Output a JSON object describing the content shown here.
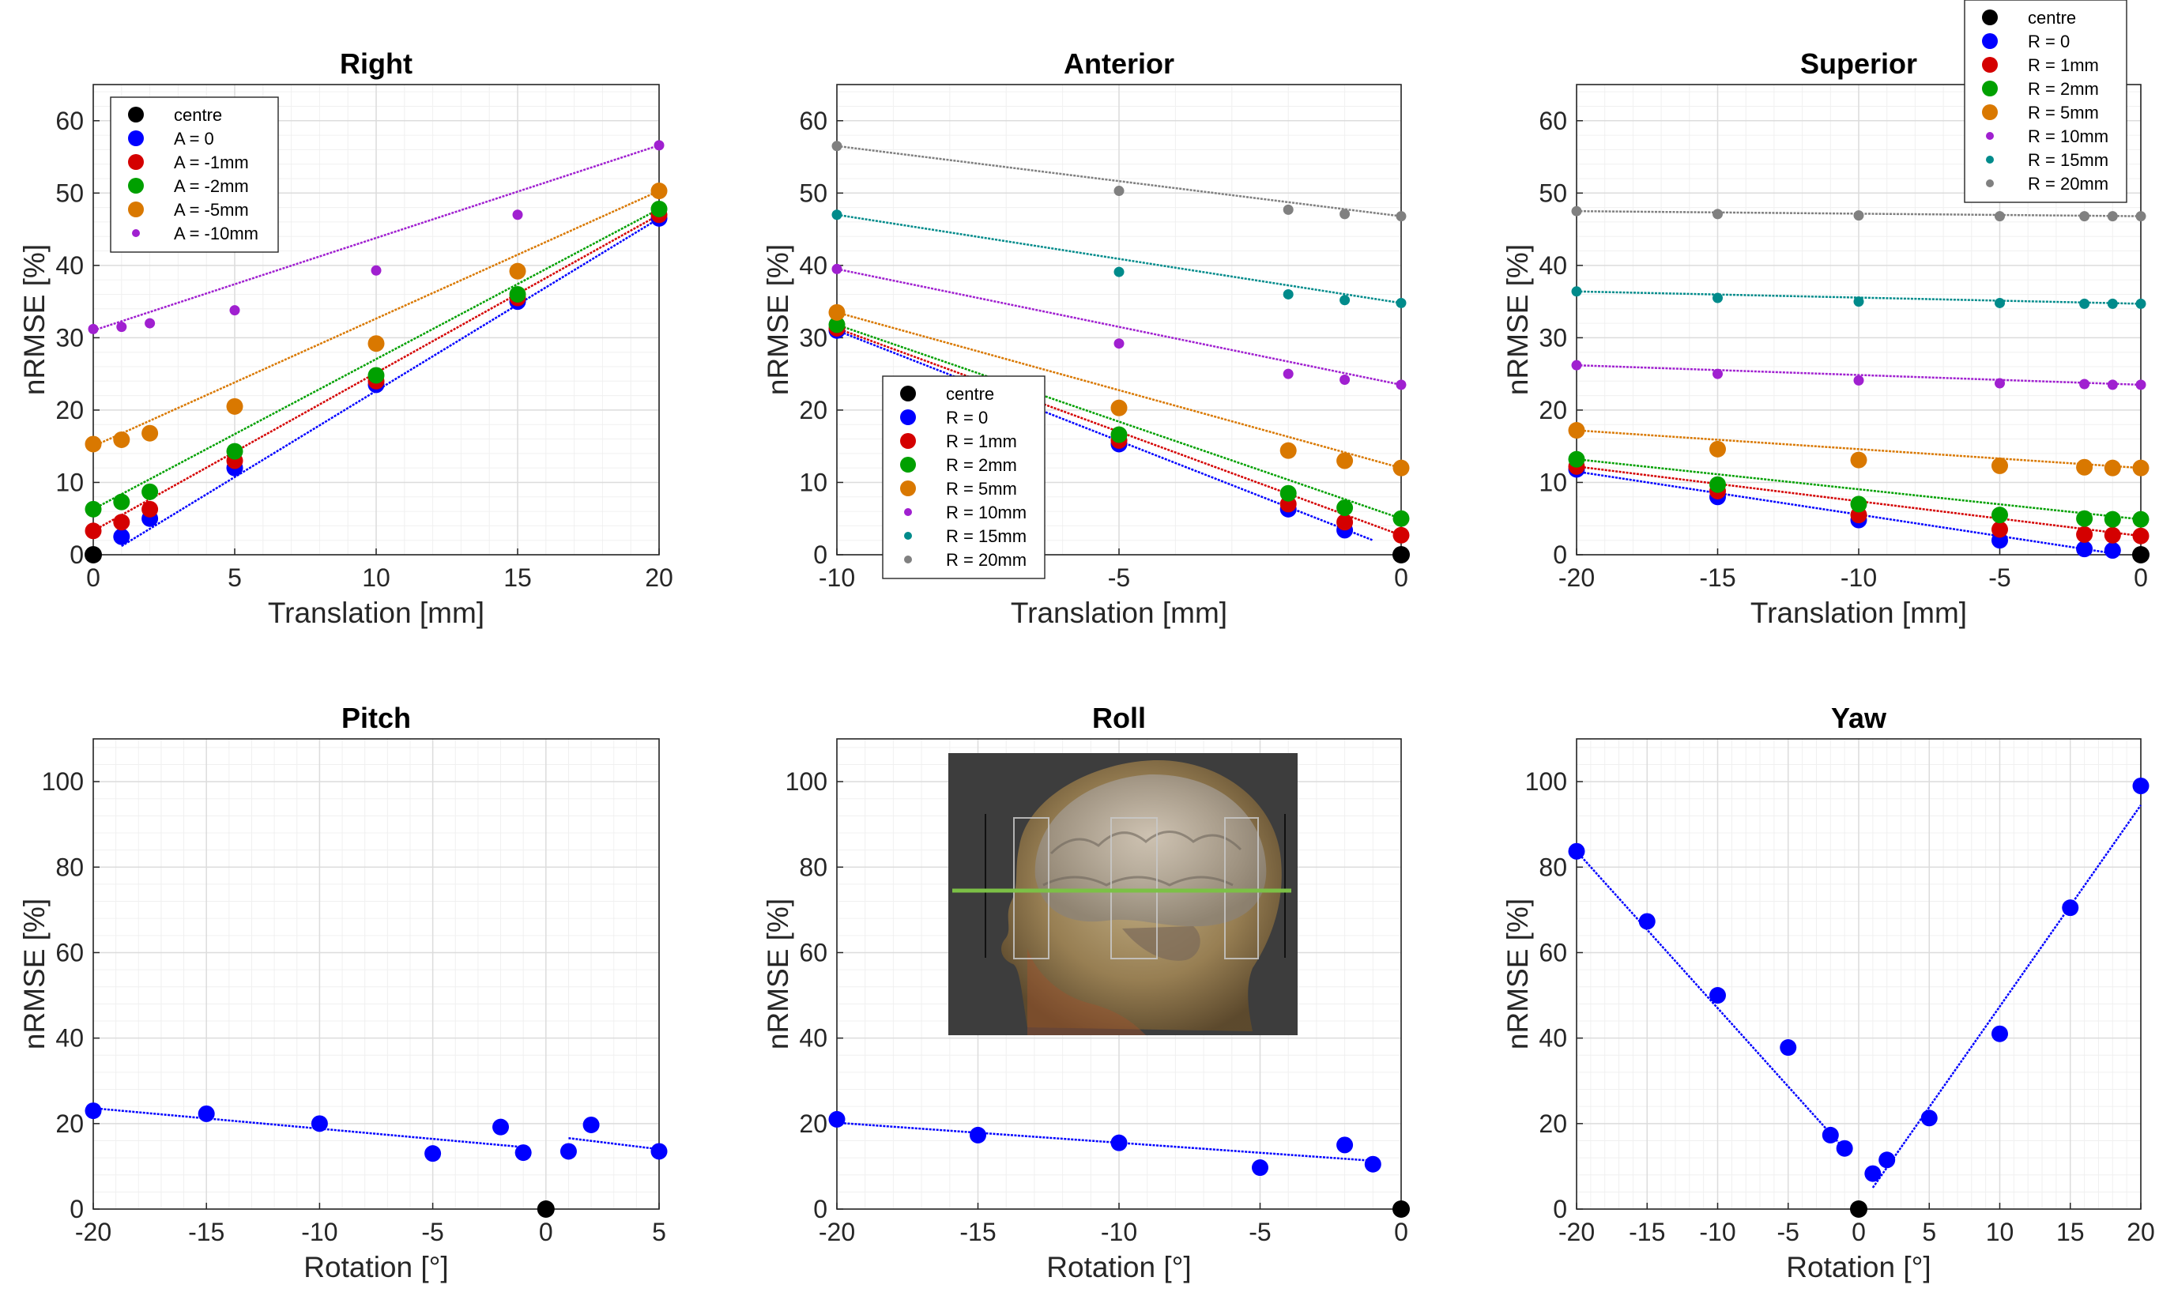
{
  "colors": {
    "centre": "#000000",
    "s0": "#0000ff",
    "s1": "#d40000",
    "s2": "#00a000",
    "s5": "#d97800",
    "s10": "#a020d0",
    "s15": "#008b8b",
    "s20": "#808080"
  },
  "chart_data": [
    {
      "type": "scatter",
      "title": "Right",
      "xlabel": "Translation [mm]",
      "ylabel": "nRMSE [%]",
      "xlim": [
        0,
        20
      ],
      "ylim": [
        0,
        65
      ],
      "xticks": [
        0,
        5,
        10,
        15,
        20
      ],
      "yticks": [
        0,
        10,
        20,
        30,
        40,
        50,
        60
      ],
      "grid": true,
      "legend": "top-left",
      "centre": {
        "name": "centre",
        "x": 0,
        "y": 0
      },
      "series": [
        {
          "name": "A = 0",
          "color_key": "s0",
          "marker": "large",
          "x": [
            1,
            2,
            5,
            10,
            15,
            20
          ],
          "y": [
            2.5,
            5,
            12,
            23.5,
            35,
            46.5
          ],
          "fit": [
            [
              1,
              1.2
            ],
            [
              20,
              46.5
            ]
          ]
        },
        {
          "name": "A = -1mm",
          "color_key": "s1",
          "marker": "large",
          "x": [
            0,
            1,
            2,
            5,
            10,
            15,
            20
          ],
          "y": [
            3.3,
            4.5,
            6.3,
            13,
            24,
            35.5,
            47
          ],
          "fit": [
            [
              0,
              3.3
            ],
            [
              20,
              47
            ]
          ]
        },
        {
          "name": "A = -2mm",
          "color_key": "s2",
          "marker": "large",
          "x": [
            0,
            1,
            2,
            5,
            10,
            15,
            20
          ],
          "y": [
            6.3,
            7.3,
            8.7,
            14.3,
            24.8,
            36,
            47.8
          ],
          "fit": [
            [
              0,
              6.3
            ],
            [
              20,
              47.8
            ]
          ]
        },
        {
          "name": "A = -5mm",
          "color_key": "s5",
          "marker": "large",
          "x": [
            0,
            1,
            2,
            5,
            10,
            15,
            20
          ],
          "y": [
            15.3,
            15.9,
            16.8,
            20.5,
            29.2,
            39.2,
            50.3
          ],
          "fit": [
            [
              0,
              15
            ],
            [
              20,
              50.3
            ]
          ]
        },
        {
          "name": "A = -10mm",
          "color_key": "s10",
          "marker": "small",
          "x": [
            0,
            1,
            2,
            5,
            10,
            15,
            20
          ],
          "y": [
            31.2,
            31.5,
            32,
            33.8,
            39.3,
            47,
            56.6
          ],
          "fit": [
            [
              0,
              31
            ],
            [
              20,
              56.6
            ]
          ]
        }
      ]
    },
    {
      "type": "scatter",
      "title": "Anterior",
      "xlabel": "Translation [mm]",
      "ylabel": "nRMSE [%]",
      "xlim": [
        -10,
        0
      ],
      "ylim": [
        0,
        65
      ],
      "xticks": [
        -10,
        -5,
        0
      ],
      "yticks": [
        0,
        10,
        20,
        30,
        40,
        50,
        60
      ],
      "grid": true,
      "legend": "bottom-center",
      "centre": {
        "name": "centre",
        "x": 0,
        "y": 0
      },
      "series": [
        {
          "name": "R = 0",
          "color_key": "s0",
          "marker": "large",
          "x": [
            -10,
            -5,
            -2,
            -1
          ],
          "y": [
            31,
            15.3,
            6.3,
            3.4
          ],
          "fit": [
            [
              -10,
              31
            ],
            [
              -0.5,
              2
            ]
          ]
        },
        {
          "name": "R = 1mm",
          "color_key": "s1",
          "marker": "large",
          "x": [
            -10,
            -5,
            -2,
            -1,
            0
          ],
          "y": [
            31.3,
            15.8,
            7,
            4.5,
            2.7
          ],
          "fit": [
            [
              -10,
              31.3
            ],
            [
              0,
              2.7
            ]
          ]
        },
        {
          "name": "R = 2mm",
          "color_key": "s2",
          "marker": "large",
          "x": [
            -10,
            -5,
            -2,
            -1,
            0
          ],
          "y": [
            31.8,
            16.6,
            8.5,
            6.5,
            5
          ],
          "fit": [
            [
              -10,
              31.8
            ],
            [
              0,
              5
            ]
          ]
        },
        {
          "name": "R = 5mm",
          "color_key": "s5",
          "marker": "large",
          "x": [
            -10,
            -5,
            -2,
            -1,
            0
          ],
          "y": [
            33.5,
            20.3,
            14.4,
            13,
            12
          ],
          "fit": [
            [
              -10,
              33.5
            ],
            [
              0,
              12
            ]
          ]
        },
        {
          "name": "R = 10mm",
          "color_key": "s10",
          "marker": "small",
          "x": [
            -10,
            -5,
            -2,
            -1,
            0
          ],
          "y": [
            39.5,
            29.2,
            25,
            24.2,
            23.5
          ],
          "fit": [
            [
              -10,
              39.5
            ],
            [
              0,
              23.5
            ]
          ]
        },
        {
          "name": "R = 15mm",
          "color_key": "s15",
          "marker": "small",
          "x": [
            -10,
            -5,
            -2,
            -1,
            0
          ],
          "y": [
            47,
            39.1,
            36,
            35.2,
            34.8
          ],
          "fit": [
            [
              -10,
              47
            ],
            [
              0,
              34.8
            ]
          ]
        },
        {
          "name": "R = 20mm",
          "color_key": "s20",
          "marker": "small",
          "x": [
            -10,
            -5,
            -2,
            -1,
            0
          ],
          "y": [
            56.5,
            50.3,
            47.7,
            47.1,
            46.8
          ],
          "fit": [
            [
              -10,
              56.5
            ],
            [
              0,
              46.8
            ]
          ]
        }
      ]
    },
    {
      "type": "scatter",
      "title": "Superior",
      "xlabel": "Translation [mm]",
      "ylabel": "nRMSE [%]",
      "xlim": [
        -20,
        0
      ],
      "ylim": [
        0,
        65
      ],
      "xticks": [
        -20,
        -15,
        -10,
        -5,
        0
      ],
      "yticks": [
        0,
        10,
        20,
        30,
        40,
        50,
        60
      ],
      "grid": true,
      "legend": "top-right",
      "centre": {
        "name": "centre",
        "x": 0,
        "y": 0
      },
      "series": [
        {
          "name": "R = 0",
          "color_key": "s0",
          "marker": "large",
          "x": [
            -20,
            -15,
            -10,
            -5,
            -2,
            -1
          ],
          "y": [
            11.8,
            8,
            4.8,
            2,
            0.8,
            0.6
          ],
          "fit": [
            [
              -20,
              11.5
            ],
            [
              -1,
              0.2
            ]
          ]
        },
        {
          "name": "R = 1mm",
          "color_key": "s1",
          "marker": "large",
          "x": [
            -20,
            -15,
            -10,
            -5,
            -2,
            -1,
            0
          ],
          "y": [
            12.2,
            8.8,
            5.5,
            3.5,
            2.8,
            2.7,
            2.6
          ],
          "fit": [
            [
              -20,
              12.2
            ],
            [
              0,
              2.6
            ]
          ]
        },
        {
          "name": "R = 2mm",
          "color_key": "s2",
          "marker": "large",
          "x": [
            -20,
            -15,
            -10,
            -5,
            -2,
            -1,
            0
          ],
          "y": [
            13.2,
            9.7,
            7,
            5.5,
            5,
            4.9,
            4.9
          ],
          "fit": [
            [
              -20,
              13.2
            ],
            [
              0,
              4.9
            ]
          ]
        },
        {
          "name": "R = 5mm",
          "color_key": "s5",
          "marker": "large",
          "x": [
            -20,
            -15,
            -10,
            -5,
            -2,
            -1,
            0
          ],
          "y": [
            17.2,
            14.6,
            13.1,
            12.3,
            12.1,
            12,
            12
          ],
          "fit": [
            [
              -20,
              17.2
            ],
            [
              0,
              12
            ]
          ]
        },
        {
          "name": "R = 10mm",
          "color_key": "s10",
          "marker": "small",
          "x": [
            -20,
            -15,
            -10,
            -5,
            -2,
            -1,
            0
          ],
          "y": [
            26.2,
            25,
            24.1,
            23.7,
            23.6,
            23.5,
            23.5
          ],
          "fit": [
            [
              -20,
              26.2
            ],
            [
              0,
              23.5
            ]
          ]
        },
        {
          "name": "R = 15mm",
          "color_key": "s15",
          "marker": "small",
          "x": [
            -20,
            -15,
            -10,
            -5,
            -2,
            -1,
            0
          ],
          "y": [
            36.4,
            35.5,
            35,
            34.8,
            34.7,
            34.7,
            34.7
          ],
          "fit": [
            [
              -20,
              36.4
            ],
            [
              0,
              34.7
            ]
          ]
        },
        {
          "name": "R = 20mm",
          "color_key": "s20",
          "marker": "small",
          "x": [
            -20,
            -15,
            -10,
            -5,
            -2,
            -1,
            0
          ],
          "y": [
            47.5,
            47.1,
            46.9,
            46.8,
            46.8,
            46.8,
            46.8
          ],
          "fit": [
            [
              -20,
              47.5
            ],
            [
              0,
              46.8
            ]
          ]
        }
      ]
    },
    {
      "type": "scatter",
      "title": "Pitch",
      "xlabel": "Rotation [°]",
      "ylabel": "nRMSE [%]",
      "xlim": [
        -20,
        5
      ],
      "ylim": [
        0,
        110
      ],
      "xticks": [
        -20,
        -15,
        -10,
        -5,
        0,
        5
      ],
      "yticks": [
        0,
        20,
        40,
        60,
        80,
        100
      ],
      "grid": true,
      "centre": {
        "name": "centre",
        "x": 0,
        "y": 0
      },
      "series": [
        {
          "color_key": "s0",
          "marker": "large",
          "x": [
            -20,
            -15,
            -10,
            -5,
            -2,
            -1,
            1,
            2,
            5
          ],
          "y": [
            23,
            22.3,
            20,
            13,
            19.2,
            13.2,
            13.5,
            19.7,
            13.5
          ],
          "fits": [
            [
              [
                -20,
                23.6
              ],
              [
                -1,
                14.5
              ]
            ],
            [
              [
                1,
                16.6
              ],
              [
                5,
                14
              ]
            ]
          ]
        }
      ]
    },
    {
      "type": "scatter",
      "title": "Roll",
      "xlabel": "Rotation [°]",
      "ylabel": "nRMSE [%]",
      "xlim": [
        -20,
        0
      ],
      "ylim": [
        0,
        110
      ],
      "xticks": [
        -20,
        -15,
        -10,
        -5,
        0
      ],
      "yticks": [
        0,
        20,
        40,
        60,
        80,
        100
      ],
      "grid": true,
      "centre": {
        "name": "centre",
        "x": 0,
        "y": 0
      },
      "series": [
        {
          "color_key": "s0",
          "marker": "large",
          "x": [
            -20,
            -15,
            -10,
            -5,
            -2,
            -1
          ],
          "y": [
            21,
            17.3,
            15.5,
            9.7,
            15,
            10.5
          ],
          "fits": [
            [
              [
                -20,
                20.2
              ],
              [
                -1,
                11.3
              ]
            ]
          ]
        }
      ]
    },
    {
      "type": "scatter",
      "title": "Yaw",
      "xlabel": "Rotation [°]",
      "ylabel": "nRMSE [%]",
      "xlim": [
        -20,
        20
      ],
      "ylim": [
        0,
        110
      ],
      "xticks": [
        -20,
        -15,
        -10,
        -5,
        0,
        5,
        10,
        15,
        20
      ],
      "yticks": [
        0,
        20,
        40,
        60,
        80,
        100
      ],
      "grid": true,
      "centre": {
        "name": "centre",
        "x": 0,
        "y": 0
      },
      "series": [
        {
          "color_key": "s0",
          "marker": "large",
          "x": [
            -20,
            -15,
            -10,
            -5,
            -2,
            -1,
            1,
            2,
            5,
            10,
            15,
            20
          ],
          "y": [
            83.7,
            67.3,
            50,
            37.8,
            17.3,
            14.2,
            8.3,
            11.5,
            21.3,
            41,
            70.5,
            99
          ],
          "fits": [
            [
              [
                -20,
                83.7
              ],
              [
                -1,
                14
              ]
            ],
            [
              [
                1,
                5
              ],
              [
                20,
                94.5
              ]
            ]
          ]
        }
      ]
    }
  ]
}
